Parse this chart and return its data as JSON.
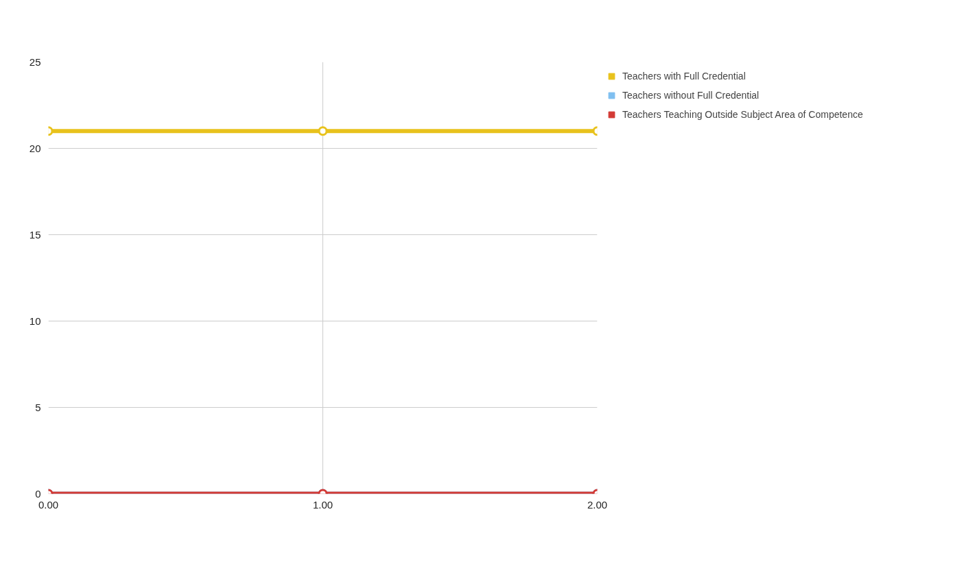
{
  "chart_data": {
    "type": "line",
    "x": [
      0,
      1,
      2
    ],
    "series": [
      {
        "name": "Teachers with Full Credential",
        "color": "#e8c21c",
        "values": [
          21,
          21,
          21
        ]
      },
      {
        "name": "Teachers without Full Credential",
        "color": "#7fbff0",
        "values": [
          null,
          null,
          null
        ]
      },
      {
        "name": "Teachers Teaching Outside Subject Area of Competence",
        "color": "#d33a35",
        "values": [
          0,
          0,
          0
        ]
      }
    ],
    "xlim": [
      0,
      2
    ],
    "xticks": [
      {
        "value": 0,
        "label": "0.00"
      },
      {
        "value": 1,
        "label": "1.00"
      },
      {
        "value": 2,
        "label": "2.00"
      }
    ],
    "ylim": [
      0,
      25
    ],
    "yticks": [
      0,
      5,
      10,
      15,
      20,
      25
    ],
    "grid": true,
    "legend": "top right",
    "marker": "circle",
    "line_style": "solid"
  }
}
